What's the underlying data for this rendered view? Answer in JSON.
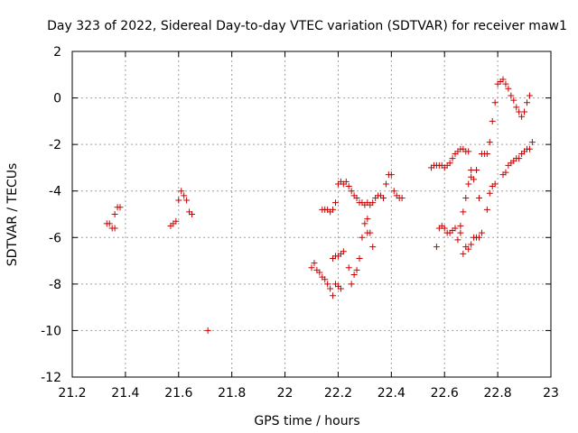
{
  "chart_data": {
    "type": "scatter",
    "title": "Day 323 of 2022, Sidereal Day-to-day VTEC variation (SDTVAR) for receiver maw1",
    "xlabel": "GPS time / hours",
    "ylabel": "SDTVAR / TECUs",
    "xlim": [
      21.2,
      23
    ],
    "ylim": [
      -12,
      2
    ],
    "xticks": [
      21.2,
      21.4,
      21.6,
      21.8,
      22,
      22.2,
      22.4,
      22.6,
      22.8,
      23
    ],
    "xtick_labels": [
      "21.2",
      "21.4",
      "21.6",
      "21.8",
      "22",
      "22.2",
      "22.4",
      "22.6",
      "22.8",
      "23"
    ],
    "yticks": [
      2,
      0,
      -2,
      -4,
      -6,
      -8,
      -10,
      -12
    ],
    "ytick_labels": [
      "2",
      "0",
      "-2",
      "-4",
      "-6",
      "-8",
      "-10",
      "-12"
    ],
    "grid": true,
    "marker": "+",
    "series": [
      {
        "name": "maw1",
        "color": "#cc0000",
        "points": [
          [
            21.33,
            -5.4
          ],
          [
            21.34,
            -5.4
          ],
          [
            21.35,
            -5.6
          ],
          [
            21.36,
            -5.6
          ],
          [
            21.36,
            -5.0
          ],
          [
            21.37,
            -4.7
          ],
          [
            21.38,
            -4.7
          ],
          [
            21.57,
            -5.5
          ],
          [
            21.58,
            -5.4
          ],
          [
            21.59,
            -5.3
          ],
          [
            21.6,
            -4.4
          ],
          [
            21.61,
            -4.0
          ],
          [
            21.62,
            -4.2
          ],
          [
            21.63,
            -4.4
          ],
          [
            21.64,
            -4.9
          ],
          [
            21.65,
            -5.0
          ],
          [
            21.71,
            -10.0
          ],
          [
            22.1,
            -7.3
          ],
          [
            22.11,
            -7.1
          ],
          [
            22.12,
            -7.4
          ],
          [
            22.13,
            -7.5
          ],
          [
            22.14,
            -7.7
          ],
          [
            22.15,
            -7.8
          ],
          [
            22.16,
            -8.0
          ],
          [
            22.17,
            -8.2
          ],
          [
            22.18,
            -8.5
          ],
          [
            22.14,
            -4.8
          ],
          [
            22.15,
            -4.8
          ],
          [
            22.16,
            -4.8
          ],
          [
            22.17,
            -4.9
          ],
          [
            22.18,
            -4.8
          ],
          [
            22.19,
            -4.5
          ],
          [
            22.18,
            -6.9
          ],
          [
            22.19,
            -6.8
          ],
          [
            22.2,
            -6.8
          ],
          [
            22.21,
            -6.7
          ],
          [
            22.22,
            -6.6
          ],
          [
            22.19,
            -8.0
          ],
          [
            22.2,
            -8.1
          ],
          [
            22.21,
            -8.2
          ],
          [
            22.2,
            -3.7
          ],
          [
            22.21,
            -3.6
          ],
          [
            22.22,
            -3.7
          ],
          [
            22.23,
            -3.6
          ],
          [
            22.24,
            -3.8
          ],
          [
            22.25,
            -4.0
          ],
          [
            22.26,
            -4.2
          ],
          [
            22.27,
            -4.3
          ],
          [
            22.28,
            -4.5
          ],
          [
            22.29,
            -4.5
          ],
          [
            22.3,
            -4.6
          ],
          [
            22.31,
            -4.5
          ],
          [
            22.32,
            -4.6
          ],
          [
            22.33,
            -4.5
          ],
          [
            22.24,
            -7.3
          ],
          [
            22.25,
            -8.0
          ],
          [
            22.26,
            -7.6
          ],
          [
            22.27,
            -7.4
          ],
          [
            22.28,
            -6.9
          ],
          [
            22.29,
            -6.0
          ],
          [
            22.3,
            -5.4
          ],
          [
            22.31,
            -5.2
          ],
          [
            22.31,
            -5.8
          ],
          [
            22.32,
            -5.8
          ],
          [
            22.33,
            -6.4
          ],
          [
            22.34,
            -4.3
          ],
          [
            22.35,
            -4.2
          ],
          [
            22.36,
            -4.2
          ],
          [
            22.37,
            -4.3
          ],
          [
            22.38,
            -3.7
          ],
          [
            22.39,
            -3.3
          ],
          [
            22.4,
            -3.3
          ],
          [
            22.41,
            -4.0
          ],
          [
            22.42,
            -4.2
          ],
          [
            22.43,
            -4.3
          ],
          [
            22.44,
            -4.3
          ],
          [
            22.55,
            -3.0
          ],
          [
            22.56,
            -2.9
          ],
          [
            22.57,
            -2.9
          ],
          [
            22.58,
            -2.9
          ],
          [
            22.59,
            -2.9
          ],
          [
            22.6,
            -3.0
          ],
          [
            22.61,
            -2.9
          ],
          [
            22.62,
            -2.8
          ],
          [
            22.63,
            -2.6
          ],
          [
            22.64,
            -2.4
          ],
          [
            22.65,
            -2.3
          ],
          [
            22.66,
            -2.2
          ],
          [
            22.67,
            -2.2
          ],
          [
            22.68,
            -2.3
          ],
          [
            22.69,
            -2.3
          ],
          [
            22.57,
            -6.4
          ],
          [
            22.58,
            -5.6
          ],
          [
            22.59,
            -5.5
          ],
          [
            22.6,
            -5.6
          ],
          [
            22.61,
            -5.8
          ],
          [
            22.62,
            -5.8
          ],
          [
            22.63,
            -5.7
          ],
          [
            22.64,
            -5.6
          ],
          [
            22.65,
            -6.1
          ],
          [
            22.66,
            -5.8
          ],
          [
            22.66,
            -5.5
          ],
          [
            22.67,
            -6.7
          ],
          [
            22.68,
            -6.4
          ],
          [
            22.69,
            -6.5
          ],
          [
            22.7,
            -6.3
          ],
          [
            22.71,
            -6.0
          ],
          [
            22.72,
            -6.0
          ],
          [
            22.73,
            -6.0
          ],
          [
            22.74,
            -5.8
          ],
          [
            22.67,
            -4.9
          ],
          [
            22.68,
            -4.3
          ],
          [
            22.69,
            -3.7
          ],
          [
            22.7,
            -3.4
          ],
          [
            22.7,
            -3.1
          ],
          [
            22.71,
            -3.5
          ],
          [
            22.72,
            -3.1
          ],
          [
            22.73,
            -4.3
          ],
          [
            22.74,
            -2.4
          ],
          [
            22.75,
            -2.4
          ],
          [
            22.76,
            -4.8
          ],
          [
            22.76,
            -2.4
          ],
          [
            22.77,
            -1.9
          ],
          [
            22.77,
            -4.1
          ],
          [
            22.78,
            -1.0
          ],
          [
            22.78,
            -3.8
          ],
          [
            22.79,
            -3.7
          ],
          [
            22.79,
            -0.2
          ],
          [
            22.8,
            0.6
          ],
          [
            22.81,
            0.7
          ],
          [
            22.82,
            0.8
          ],
          [
            22.82,
            -3.3
          ],
          [
            22.83,
            -3.2
          ],
          [
            22.83,
            0.6
          ],
          [
            22.84,
            0.4
          ],
          [
            22.85,
            0.1
          ],
          [
            22.86,
            -0.1
          ],
          [
            22.87,
            -0.4
          ],
          [
            22.88,
            -0.6
          ],
          [
            22.89,
            -0.8
          ],
          [
            22.9,
            -0.6
          ],
          [
            22.91,
            -0.2
          ],
          [
            22.92,
            0.1
          ],
          [
            22.84,
            -2.9
          ],
          [
            22.85,
            -2.8
          ],
          [
            22.86,
            -2.7
          ],
          [
            22.87,
            -2.6
          ],
          [
            22.88,
            -2.6
          ],
          [
            22.89,
            -2.4
          ],
          [
            22.9,
            -2.3
          ],
          [
            22.91,
            -2.2
          ],
          [
            22.92,
            -2.2
          ],
          [
            22.93,
            -1.9
          ]
        ]
      }
    ]
  }
}
